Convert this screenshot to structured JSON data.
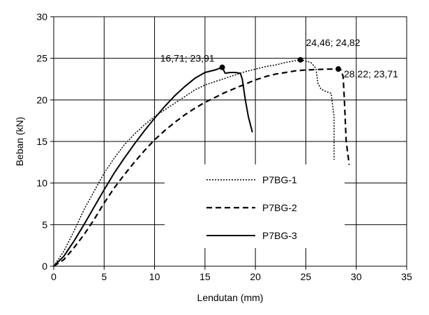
{
  "chart_data": {
    "type": "line",
    "xlabel": "Lendutan (mm)",
    "ylabel": "Beban (kN)",
    "xlim": [
      0,
      35
    ],
    "ylim": [
      0,
      30
    ],
    "xticks": [
      0,
      5,
      10,
      15,
      20,
      25,
      30,
      35
    ],
    "yticks": [
      0,
      5,
      10,
      15,
      20,
      25,
      30
    ],
    "grid": true,
    "legend_position": "center-right",
    "series": [
      {
        "name": "P7BG-1",
        "style": "dotted",
        "color": "#000000",
        "points": [
          [
            0,
            0
          ],
          [
            1,
            1.8
          ],
          [
            2,
            4.2
          ],
          [
            3,
            6.8
          ],
          [
            4,
            9.0
          ],
          [
            5,
            11.2
          ],
          [
            6,
            13.0
          ],
          [
            7,
            14.6
          ],
          [
            8,
            15.9
          ],
          [
            9,
            17.0
          ],
          [
            10,
            18.0
          ],
          [
            11,
            18.8
          ],
          [
            12,
            19.6
          ],
          [
            13,
            20.4
          ],
          [
            14,
            21.2
          ],
          [
            15,
            21.8
          ],
          [
            16,
            22.2
          ],
          [
            17,
            22.6
          ],
          [
            18,
            23.0
          ],
          [
            19,
            23.4
          ],
          [
            20,
            23.7
          ],
          [
            21,
            24.0
          ],
          [
            22,
            24.2
          ],
          [
            23,
            24.5
          ],
          [
            24.46,
            24.82
          ],
          [
            25.5,
            24.5
          ],
          [
            26,
            23.8
          ],
          [
            26.2,
            22.0
          ],
          [
            26.5,
            21.3
          ],
          [
            27,
            21.0
          ],
          [
            27.5,
            20.8
          ],
          [
            27.8,
            18.0
          ],
          [
            27.8,
            12.8
          ]
        ]
      },
      {
        "name": "P7BG-2",
        "style": "dashed",
        "color": "#000000",
        "points": [
          [
            0,
            0
          ],
          [
            1,
            0.8
          ],
          [
            2,
            2.2
          ],
          [
            3,
            3.8
          ],
          [
            4,
            5.6
          ],
          [
            5,
            7.6
          ],
          [
            6,
            9.4
          ],
          [
            7,
            11.0
          ],
          [
            8,
            12.5
          ],
          [
            9,
            13.9
          ],
          [
            10,
            15.2
          ],
          [
            11,
            16.3
          ],
          [
            12,
            17.3
          ],
          [
            13,
            18.2
          ],
          [
            14,
            19.0
          ],
          [
            15,
            19.7
          ],
          [
            16,
            20.3
          ],
          [
            17,
            20.9
          ],
          [
            18,
            21.4
          ],
          [
            19,
            21.9
          ],
          [
            20,
            22.4
          ],
          [
            21,
            22.8
          ],
          [
            22,
            23.1
          ],
          [
            23,
            23.3
          ],
          [
            24,
            23.5
          ],
          [
            25,
            23.6
          ],
          [
            26,
            23.65
          ],
          [
            27,
            23.7
          ],
          [
            28.22,
            23.71
          ],
          [
            28.5,
            23.6
          ],
          [
            28.7,
            22.8
          ],
          [
            28.8,
            20.5
          ],
          [
            29,
            15.0
          ],
          [
            29.3,
            12.2
          ]
        ]
      },
      {
        "name": "P7BG-3",
        "style": "solid",
        "color": "#000000",
        "points": [
          [
            0,
            0
          ],
          [
            1,
            1.2
          ],
          [
            2,
            3.0
          ],
          [
            3,
            5.0
          ],
          [
            4,
            7.1
          ],
          [
            5,
            9.2
          ],
          [
            6,
            11.2
          ],
          [
            7,
            13.0
          ],
          [
            8,
            14.7
          ],
          [
            9,
            16.3
          ],
          [
            10,
            17.8
          ],
          [
            11,
            19.2
          ],
          [
            12,
            20.5
          ],
          [
            13,
            21.6
          ],
          [
            14,
            22.6
          ],
          [
            15,
            23.3
          ],
          [
            16,
            23.6
          ],
          [
            16.71,
            23.91
          ],
          [
            17,
            23.2
          ],
          [
            17.5,
            23.3
          ],
          [
            18,
            23.3
          ],
          [
            18.5,
            23.2
          ],
          [
            18.7,
            22.5
          ],
          [
            19,
            20.0
          ],
          [
            19.3,
            18.0
          ],
          [
            19.7,
            16.1
          ]
        ]
      }
    ],
    "annotations": [
      {
        "label": "16,71; 23,91",
        "x": 16.71,
        "y": 23.91,
        "text_anchor": "end"
      },
      {
        "label": "24,46; 24,82",
        "x": 24.46,
        "y": 24.82,
        "text_anchor": "start"
      },
      {
        "label": "28,22; 23,71",
        "x": 28.22,
        "y": 23.71,
        "text_anchor": "start"
      }
    ]
  }
}
